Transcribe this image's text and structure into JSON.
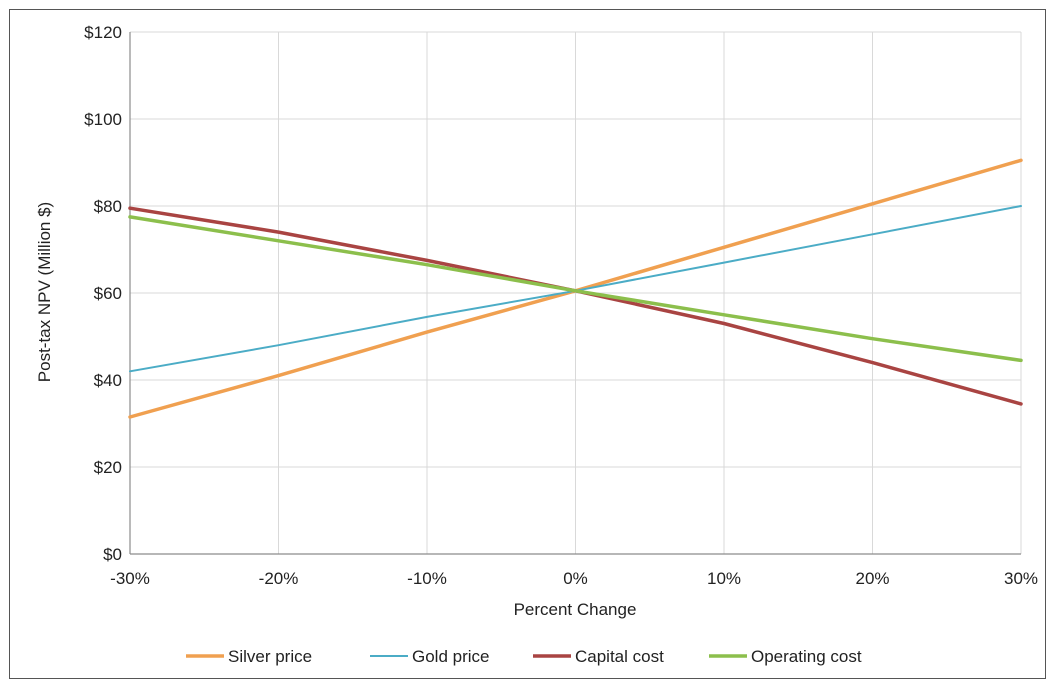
{
  "chart_data": {
    "type": "line",
    "title": "",
    "xlabel": "Percent Change",
    "ylabel": "Post-tax NPV (Million $)",
    "x": [
      -30,
      -20,
      -10,
      0,
      10,
      20,
      30
    ],
    "x_tick_labels": [
      "-30%",
      "-20%",
      "-10%",
      "0%",
      "10%",
      "20%",
      "30%"
    ],
    "xlim": [
      -30,
      30
    ],
    "y_ticks": [
      0,
      20,
      40,
      60,
      80,
      100,
      120
    ],
    "y_tick_labels": [
      "$0",
      "$20",
      "$40",
      "$60",
      "$80",
      "$100",
      "$120"
    ],
    "ylim": [
      0,
      120
    ],
    "grid": true,
    "legend_position": "bottom",
    "series": [
      {
        "name": "Silver price",
        "color": "#F0A050",
        "width": 3.5,
        "values": [
          31.5,
          41,
          51,
          60.5,
          70.5,
          80.5,
          90.5
        ]
      },
      {
        "name": "Gold price",
        "color": "#4BACC6",
        "width": 2,
        "values": [
          42,
          48,
          54.5,
          60.5,
          67,
          73.5,
          80
        ]
      },
      {
        "name": "Capital cost",
        "color": "#A94442",
        "width": 3.5,
        "values": [
          79.5,
          74,
          67.5,
          60.5,
          53,
          44,
          34.5
        ]
      },
      {
        "name": "Operating cost",
        "color": "#8CBF4C",
        "width": 3.5,
        "values": [
          77.5,
          72,
          66.5,
          60.5,
          55,
          49.5,
          44.5
        ]
      }
    ]
  }
}
